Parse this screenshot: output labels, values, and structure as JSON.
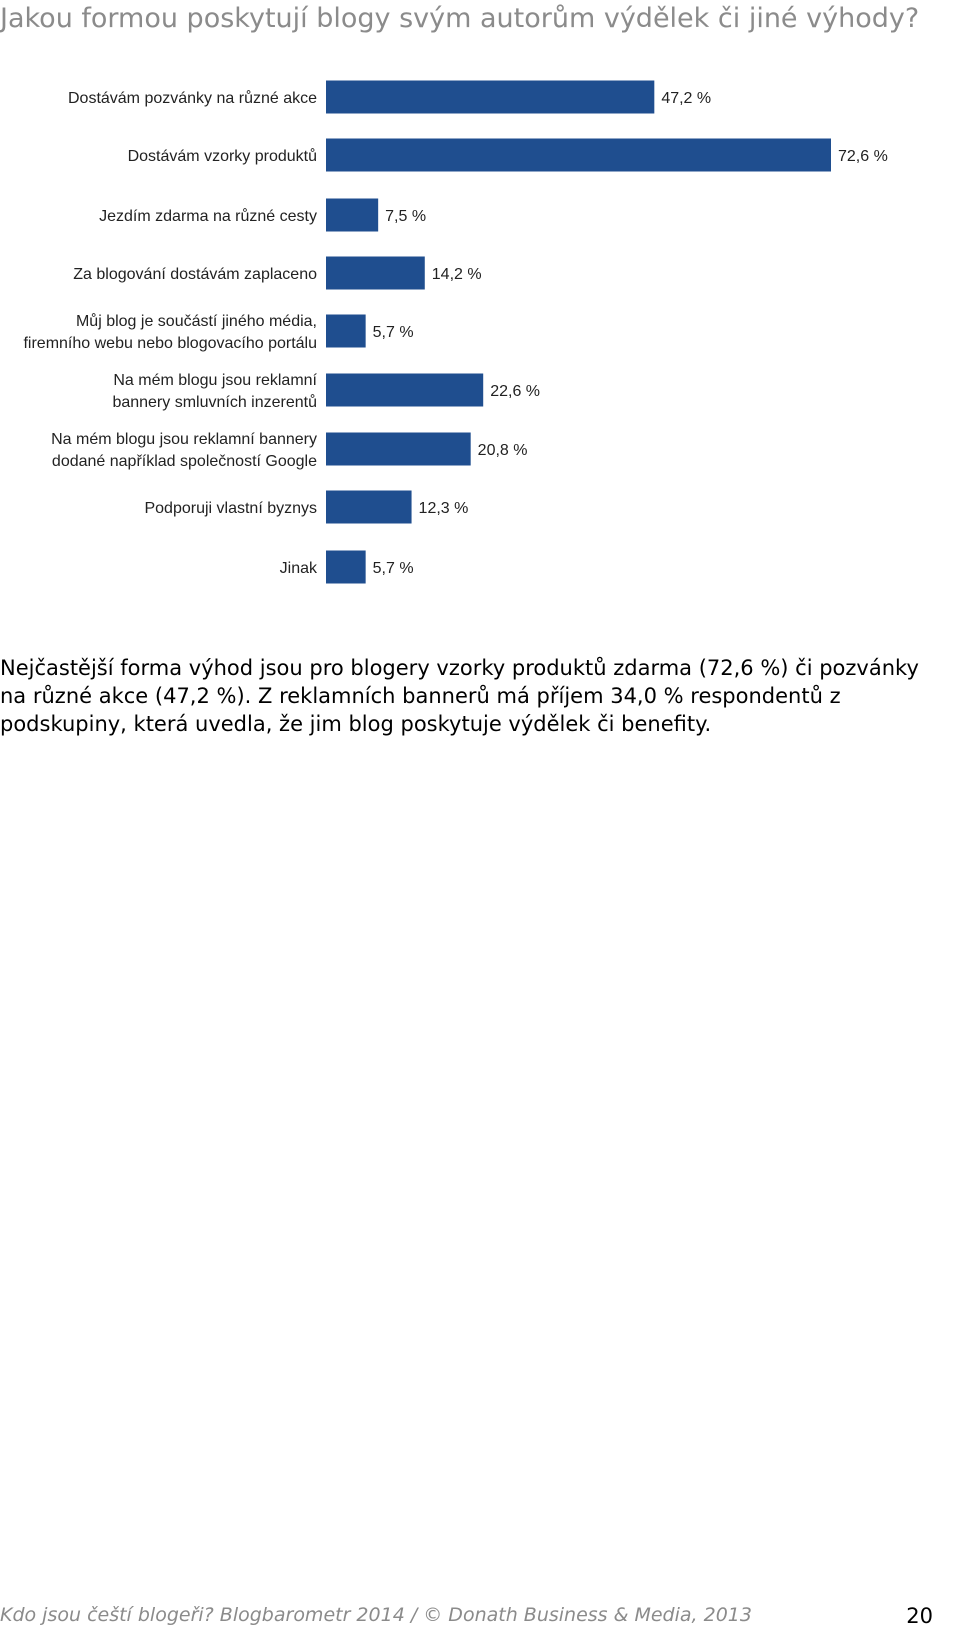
{
  "page": {
    "title": "Jakou formou poskytují blogy svým autorům výdělek či jiné výhody?",
    "summary": "Nejčastější forma výhod jsou pro blogery vzorky produktů zdarma (72,6 %) či pozvánky na různé akce (47,2 %). Z reklamních bannerů má příjem 34,0 % respondentů z podskupiny, která uvedla, že jim blog poskytuje výdělek či benefity.",
    "footer": "Kdo jsou čeští blogeři? Blogbarometr 2014 / © Donath Business & Media, 2013",
    "page_number": "20"
  },
  "chart_data": {
    "type": "bar",
    "orientation": "horizontal",
    "categories": [
      [
        "Dostávám pozvánky na různé akce"
      ],
      [
        "Dostávám vzorky produktů"
      ],
      [
        "Jezdím zdarma na různé cesty"
      ],
      [
        "Za blogování dostávám zaplaceno"
      ],
      [
        "Můj blog je součástí jiného média,",
        "firemního webu nebo blogovacího portálu"
      ],
      [
        "Na mém blogu jsou reklamní",
        "bannery smluvních inzerentů"
      ],
      [
        "Na mém blogu jsou reklamní bannery",
        "dodané například společností Google"
      ],
      [
        "Podporuji vlastní byznys"
      ],
      [
        "Jinak"
      ]
    ],
    "values": [
      47.2,
      72.6,
      7.5,
      14.2,
      5.7,
      22.6,
      20.8,
      12.3,
      5.7
    ],
    "value_labels": [
      "47,2 %",
      "72,6 %",
      "7,5 %",
      "14,2 %",
      "5,7 %",
      "22,6 %",
      "20,8 %",
      "12,3 %",
      "5,7 %"
    ],
    "xlim": [
      0,
      72.6
    ],
    "grid": false,
    "legend": "none",
    "bar_color": "#1f4e8f"
  }
}
